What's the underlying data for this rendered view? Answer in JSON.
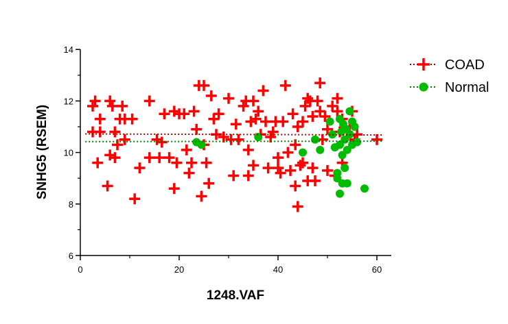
{
  "chart_data": {
    "type": "scatter",
    "title": "",
    "xlabel": "1248.VAF",
    "ylabel": "SNHG5 (RSEM)",
    "xlim": [
      0,
      63
    ],
    "ylim": [
      6,
      14
    ],
    "x_ticks": [
      0,
      20,
      40,
      60
    ],
    "y_ticks": [
      6,
      8,
      10,
      12,
      14
    ],
    "x_tick_labels": [
      "0",
      "20",
      "40",
      "60"
    ],
    "y_tick_labels": [
      "6",
      "8",
      "10",
      "12",
      "14"
    ],
    "grid": false,
    "legend_position": "top-right",
    "series": [
      {
        "name": "COAD",
        "color": "#ff0000",
        "marker": "plus",
        "trend_y": [
          10.72,
          10.68
        ],
        "points": [
          [
            2.5,
            11.8
          ],
          [
            3,
            12
          ],
          [
            2.5,
            10.8
          ],
          [
            4,
            11.3
          ],
          [
            3.5,
            9.6
          ],
          [
            4,
            10.8
          ],
          [
            5.5,
            8.7
          ],
          [
            6,
            12
          ],
          [
            6,
            9.9
          ],
          [
            6.5,
            11.8
          ],
          [
            7,
            9.8
          ],
          [
            7,
            10.8
          ],
          [
            7.5,
            10.3
          ],
          [
            8,
            11.3
          ],
          [
            8.5,
            11.8
          ],
          [
            9,
            10.5
          ],
          [
            9,
            11.3
          ],
          [
            10.5,
            11.3
          ],
          [
            11,
            8.2
          ],
          [
            12,
            9.4
          ],
          [
            14,
            9.8
          ],
          [
            14,
            12
          ],
          [
            15.5,
            10.5
          ],
          [
            16,
            9.8
          ],
          [
            16.5,
            10.4
          ],
          [
            17,
            11.5
          ],
          [
            18,
            9.8
          ],
          [
            19,
            11.6
          ],
          [
            19,
            8.6
          ],
          [
            19.5,
            9.6
          ],
          [
            20,
            11.5
          ],
          [
            21,
            11.5
          ],
          [
            21.5,
            10.1
          ],
          [
            22,
            9.2
          ],
          [
            22.5,
            9.6
          ],
          [
            23,
            11.6
          ],
          [
            23.5,
            10.9
          ],
          [
            24,
            12.6
          ],
          [
            24.5,
            8.3
          ],
          [
            25,
            12.6
          ],
          [
            25,
            10.3
          ],
          [
            25.5,
            9.6
          ],
          [
            26,
            8.8
          ],
          [
            26.5,
            12.2
          ],
          [
            27,
            11.3
          ],
          [
            27.5,
            10.7
          ],
          [
            28,
            11.5
          ],
          [
            29,
            10.6
          ],
          [
            30,
            12.1
          ],
          [
            30.5,
            10.5
          ],
          [
            31,
            9.1
          ],
          [
            31.5,
            11.1
          ],
          [
            32,
            10.5
          ],
          [
            33,
            11.8
          ],
          [
            33.5,
            12
          ],
          [
            34,
            10.1
          ],
          [
            34,
            9.1
          ],
          [
            34.5,
            11.2
          ],
          [
            35,
            12
          ],
          [
            35,
            9.5
          ],
          [
            35.5,
            11.3
          ],
          [
            36,
            11.6
          ],
          [
            36.5,
            10.7
          ],
          [
            37,
            12.4
          ],
          [
            37.5,
            11.2
          ],
          [
            38,
            9.4
          ],
          [
            38.5,
            10.6
          ],
          [
            39,
            10.8
          ],
          [
            39.5,
            11.2
          ],
          [
            40,
            9.8
          ],
          [
            40,
            9.4
          ],
          [
            40.5,
            9.2
          ],
          [
            41,
            11.2
          ],
          [
            41.5,
            12.6
          ],
          [
            42,
            10
          ],
          [
            42.5,
            9.3
          ],
          [
            43,
            11.5
          ],
          [
            43.5,
            10.3
          ],
          [
            43.5,
            8.7
          ],
          [
            44,
            7.9
          ],
          [
            44,
            11
          ],
          [
            44.5,
            9.5
          ],
          [
            45,
            9.6
          ],
          [
            45,
            11.2
          ],
          [
            45.5,
            11.8
          ],
          [
            46,
            12.1
          ],
          [
            46,
            8.9
          ],
          [
            46.5,
            12
          ],
          [
            47,
            11.4
          ],
          [
            47,
            9.4
          ],
          [
            47.5,
            8.9
          ],
          [
            48,
            12
          ],
          [
            48.5,
            11.6
          ],
          [
            48.5,
            12.7
          ],
          [
            49,
            10.5
          ],
          [
            49.5,
            11.4
          ],
          [
            50,
            10.9
          ],
          [
            50,
            9.3
          ],
          [
            51,
            11.8
          ],
          [
            51.5,
            9.1
          ],
          [
            52,
            12.1
          ],
          [
            52,
            11.6
          ],
          [
            52.5,
            10.8
          ],
          [
            53,
            9.6
          ],
          [
            53,
            11.3
          ],
          [
            54,
            10.8
          ],
          [
            54.5,
            11
          ],
          [
            55,
            11.6
          ],
          [
            55.5,
            10.5
          ],
          [
            56,
            10.7
          ],
          [
            60,
            10.5
          ]
        ]
      },
      {
        "name": "Normal",
        "color": "#00bb00",
        "marker": "diamond",
        "trend_y": [
          10.42,
          10.44
        ],
        "points": [
          [
            23.5,
            10.4
          ],
          [
            24.5,
            10.3
          ],
          [
            36,
            10.6
          ],
          [
            45,
            10
          ],
          [
            47.5,
            10.5
          ],
          [
            48.5,
            10.1
          ],
          [
            50.5,
            11.2
          ],
          [
            51,
            10.7
          ],
          [
            51.5,
            10.2
          ],
          [
            52,
            9.2
          ],
          [
            52,
            9
          ],
          [
            52.5,
            11.3
          ],
          [
            52.5,
            10.3
          ],
          [
            52.5,
            8.4
          ],
          [
            52.8,
            10.8
          ],
          [
            53,
            8.8
          ],
          [
            53,
            9.9
          ],
          [
            53.2,
            11.1
          ],
          [
            53.5,
            10.5
          ],
          [
            53.5,
            9.4
          ],
          [
            53.8,
            10.9
          ],
          [
            54,
            10.1
          ],
          [
            54,
            8.8
          ],
          [
            54.5,
            11.6
          ],
          [
            54.5,
            10.7
          ],
          [
            55,
            11.2
          ],
          [
            55,
            10.3
          ],
          [
            55.5,
            11
          ],
          [
            56,
            10.4
          ],
          [
            57.5,
            8.6
          ]
        ]
      }
    ]
  }
}
